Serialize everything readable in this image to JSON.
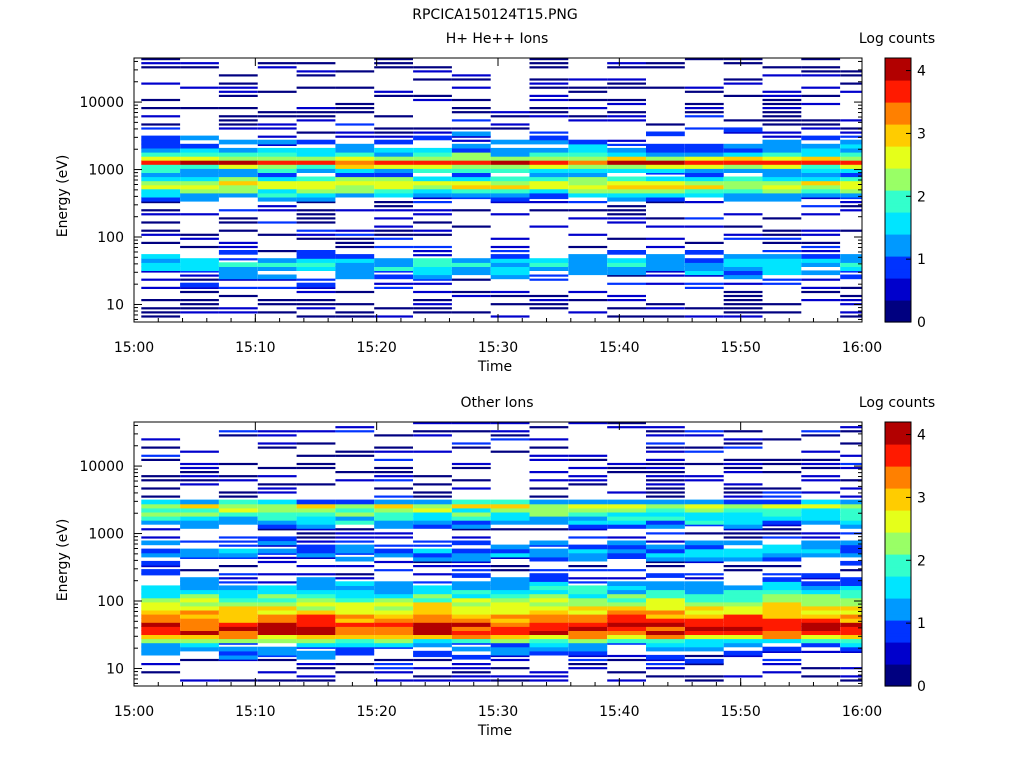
{
  "figure_title": "RPCICA150124T15.PNG",
  "colormap": [
    "#000080",
    "#0000cc",
    "#0033ff",
    "#0099ff",
    "#00e5ff",
    "#33ffcc",
    "#99ff66",
    "#e5ff1a",
    "#ffcc00",
    "#ff8000",
    "#ff1a00",
    "#b20000"
  ],
  "chart_data": [
    {
      "type": "heatmap",
      "title": "H+ He++ Ions",
      "xlabel": "Time",
      "ylabel": "Energy (eV)",
      "xticks": [
        "15:00",
        "15:10",
        "15:20",
        "15:30",
        "15:40",
        "15:50",
        "16:00"
      ],
      "xlim": [
        "15:00",
        "16:00"
      ],
      "yscale": "log",
      "ylim": [
        5.5,
        45000
      ],
      "yticks": [
        10,
        100,
        1000,
        10000
      ],
      "ytick_labels": [
        "10",
        "100",
        "1000",
        "10000"
      ],
      "colorbar": {
        "label": "Log counts",
        "ticks": [
          "0",
          "1",
          "2",
          "3",
          "4"
        ],
        "range": [
          0,
          4.2
        ]
      },
      "time_bins": [
        "15:02:12",
        "15:05:24",
        "15:08:36",
        "15:11:48",
        "15:15:00",
        "15:18:12",
        "15:21:24",
        "15:24:36",
        "15:27:48",
        "15:31:00",
        "15:34:12",
        "15:37:24",
        "15:40:36",
        "15:43:48",
        "15:47:00",
        "15:50:12",
        "15:53:24",
        "15:56:36",
        "15:59:48"
      ],
      "spectrum_profile": [
        {
          "energy": 11,
          "log_counts": 0.2
        },
        {
          "energy": 22,
          "log_counts": 0.6
        },
        {
          "energy": 30,
          "log_counts": 1.2
        },
        {
          "energy": 38,
          "log_counts": 1.6
        },
        {
          "energy": 45,
          "log_counts": 1.2
        },
        {
          "energy": 55,
          "log_counts": 0.6
        },
        {
          "energy": 100,
          "log_counts": 0.3
        },
        {
          "energy": 300,
          "log_counts": 0.4
        },
        {
          "energy": 450,
          "log_counts": 2.0
        },
        {
          "energy": 550,
          "log_counts": 2.9
        },
        {
          "energy": 650,
          "log_counts": 2.2
        },
        {
          "energy": 800,
          "log_counts": 0.9
        },
        {
          "energy": 1000,
          "log_counts": 2.0
        },
        {
          "energy": 1200,
          "log_counts": 3.8
        },
        {
          "energy": 1500,
          "log_counts": 1.8
        },
        {
          "energy": 2200,
          "log_counts": 0.9
        },
        {
          "energy": 5000,
          "log_counts": 0.3
        },
        {
          "energy": 40000,
          "log_counts": 0.2
        }
      ]
    },
    {
      "type": "heatmap",
      "title": "Other Ions",
      "xlabel": "Time",
      "ylabel": "Energy (eV)",
      "xticks": [
        "15:00",
        "15:10",
        "15:20",
        "15:30",
        "15:40",
        "15:50",
        "16:00"
      ],
      "xlim": [
        "15:00",
        "16:00"
      ],
      "yscale": "log",
      "ylim": [
        5.5,
        45000
      ],
      "yticks": [
        10,
        100,
        1000,
        10000
      ],
      "ytick_labels": [
        "10",
        "100",
        "1000",
        "10000"
      ],
      "colorbar": {
        "label": "Log counts",
        "ticks": [
          "0",
          "1",
          "2",
          "3",
          "4"
        ],
        "range": [
          0,
          4.2
        ]
      },
      "time_bins": [
        "15:02:12",
        "15:05:24",
        "15:08:36",
        "15:11:48",
        "15:15:00",
        "15:18:12",
        "15:21:24",
        "15:24:36",
        "15:27:48",
        "15:31:00",
        "15:34:12",
        "15:37:24",
        "15:40:36",
        "15:43:48",
        "15:47:00",
        "15:50:12",
        "15:53:24",
        "15:56:36",
        "15:59:48"
      ],
      "spectrum_profile": [
        {
          "energy": 10,
          "log_counts": 0.3
        },
        {
          "energy": 22,
          "log_counts": 1.2
        },
        {
          "energy": 30,
          "log_counts": 3.6
        },
        {
          "energy": 40,
          "log_counts": 3.9
        },
        {
          "energy": 55,
          "log_counts": 3.2
        },
        {
          "energy": 80,
          "log_counts": 2.6
        },
        {
          "energy": 120,
          "log_counts": 1.8
        },
        {
          "energy": 200,
          "log_counts": 0.8
        },
        {
          "energy": 300,
          "log_counts": 0.3
        },
        {
          "energy": 500,
          "log_counts": 1.4
        },
        {
          "energy": 650,
          "log_counts": 1.0
        },
        {
          "energy": 1000,
          "log_counts": 0.2
        },
        {
          "energy": 1300,
          "log_counts": 1.3
        },
        {
          "energy": 2000,
          "log_counts": 2.0
        },
        {
          "energy": 2500,
          "log_counts": 2.7
        },
        {
          "energy": 3000,
          "log_counts": 0.4
        }
      ]
    }
  ]
}
